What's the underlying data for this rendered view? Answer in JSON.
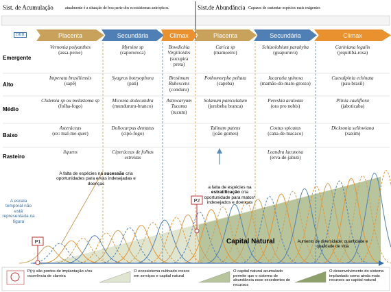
{
  "header": {
    "accumulation": {
      "title": "Sist. de Acumulação",
      "note": "atualmente é a situação de boa parte dos ecossistemas antrópicos."
    },
    "abundance": {
      "title": "Sist.de Abundância",
      "note": "Capazes de sustentar espécies mais exigentes"
    }
  },
  "strata_tag": "DBH",
  "phases": [
    "Placenta",
    "Secundária",
    "Climax",
    "Placenta",
    "Secundária",
    "Climax"
  ],
  "rows": [
    {
      "label": "Emergente",
      "cells": [
        {
          "name": "Vernonia polyanthes",
          "common": "(assa-peixe)"
        },
        {
          "name": "Myrsine sp",
          "common": "(capororoca)"
        },
        {
          "name": "Bowdichia Virgilioides",
          "common": "(sucupira preta)"
        },
        {
          "name": "Carica sp",
          "common": "(mamoeiro)"
        },
        {
          "name": "Schizolobium parahyba",
          "common": "(guapuruvu)"
        },
        {
          "name": "Cariniana legalis",
          "common": "(jequitibá-rosa)"
        }
      ]
    },
    {
      "label": "Alto",
      "cells": [
        {
          "name": "Imperata brasiliensis",
          "common": "(sapê)"
        },
        {
          "name": "Syagrus botryophora",
          "common": "(pati)"
        },
        {
          "name": "Brosimum Rubescens",
          "common": "(conduru)"
        },
        {
          "name": "Pothomorphe peltata",
          "common": "(capeba)"
        },
        {
          "name": "Jacaratia spinosa",
          "common": "(mamão-do-mato-grosso)"
        },
        {
          "name": "Caesalpinia echinata",
          "common": "(pau-brasil)"
        }
      ]
    },
    {
      "label": "Médio",
      "cells": [
        {
          "name": "Clidemia sp ou melastoma sp",
          "common": "(folha-fogo)"
        },
        {
          "name": "Miconia dodecandra",
          "common": "(mundururu-branco)"
        },
        {
          "name": "Astrocaryum Tucuma",
          "common": "(tucum)"
        },
        {
          "name": "Solanum paniculatum",
          "common": "(jurubeba branca)"
        },
        {
          "name": "Pereskia aculeata",
          "common": "(ora pro nobis)"
        },
        {
          "name": "Plinia cauliflora",
          "common": "(jaboticaba)"
        }
      ]
    },
    {
      "label": "Baixo",
      "cells": [
        {
          "name": "Asteráceas",
          "common": "(ex: mal-me-quer)"
        },
        {
          "name": "Doliocarpus dentatus",
          "common": "(cipó-fogo)"
        },
        null,
        {
          "name": "Talinum patens",
          "common": "(joão gomes)"
        },
        {
          "name": "Costus spicatus",
          "common": "(cana-de-macaco)"
        },
        {
          "name": "Dicksonia sellowiana",
          "common": "(xaxim)"
        }
      ]
    },
    {
      "label": "Rasteiro",
      "cells": [
        {
          "name": "liquens"
        },
        {
          "name": "Ciperáceas de folhas estreitas"
        },
        null,
        null,
        {
          "name": "Leandra lacunosa",
          "common": "(erva-de-jabuti)"
        },
        null
      ]
    }
  ],
  "notes": {
    "succession": [
      "A falta de espécies na ",
      "sucessão",
      " cria oportunidades para ervas indesejadas e doenças"
    ],
    "stratification": [
      "a falta de espécies na ",
      "estratificação",
      " cria oportunidade para matos* indesejados e doenças"
    ],
    "scale": "A escala temporal não está representada na figura",
    "p1": "P1",
    "p2": "P2",
    "capital": "Capital Natural",
    "diversity": "Aumento de diversidade: quantidade e qualidade de vida"
  },
  "legend": [
    "P(n) são pontos de implantação c/ou ocorrência de clareira",
    "O ecossistema cultivado cresce em serviços e capital natural",
    "O capital natural acumulado permite que o sistema de abundância esse excedentes de recursos",
    "O desenvolvimento do sistema implantado soma ainda mais recursos ao capital natural"
  ]
}
